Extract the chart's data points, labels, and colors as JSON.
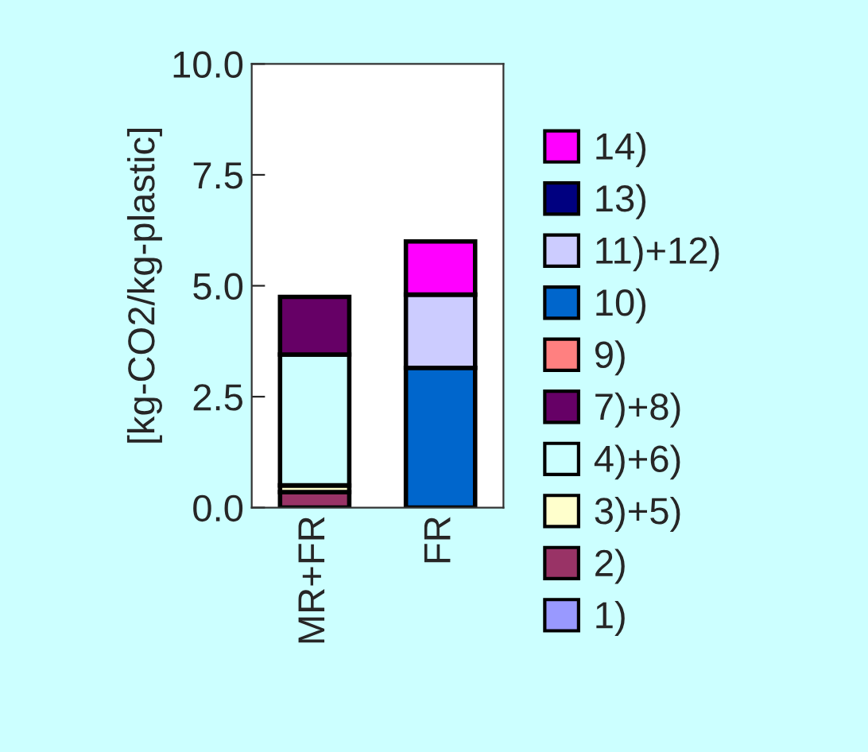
{
  "chart_data": {
    "type": "bar",
    "stacked": true,
    "ylabel": "[kg-CO2/kg-plastic]",
    "categories": [
      "MR+FR",
      "FR"
    ],
    "ylim": [
      0,
      10
    ],
    "yticks": [
      {
        "value": 0,
        "label": "0.0"
      },
      {
        "value": 2.5,
        "label": "2.5"
      },
      {
        "value": 5,
        "label": "5.0"
      },
      {
        "value": 7.5,
        "label": "7.5"
      },
      {
        "value": 10,
        "label": "10.0"
      }
    ],
    "grid": false,
    "legend": "right",
    "series": [
      {
        "name": "1)",
        "color": "#9999ff",
        "values": [
          null,
          null
        ]
      },
      {
        "name": "2)",
        "color": "#993366",
        "values": [
          0.35,
          null
        ]
      },
      {
        "name": "3)+5)",
        "color": "#ffffcc",
        "values": [
          0.15,
          null
        ]
      },
      {
        "name": "4)+6)",
        "color": "#ccffff",
        "values": [
          2.95,
          null
        ]
      },
      {
        "name": "7)+8)",
        "color": "#660066",
        "values": [
          1.3,
          null
        ]
      },
      {
        "name": "9)",
        "color": "#ff8080",
        "values": [
          null,
          null
        ]
      },
      {
        "name": "10)",
        "color": "#0066cc",
        "values": [
          null,
          3.15
        ]
      },
      {
        "name": "11)+12)",
        "color": "#ccccff",
        "values": [
          null,
          1.65
        ]
      },
      {
        "name": "13)",
        "color": "#000080",
        "values": [
          null,
          null
        ]
      },
      {
        "name": "14)",
        "color": "#ff00ff",
        "values": [
          null,
          1.2
        ]
      }
    ]
  }
}
